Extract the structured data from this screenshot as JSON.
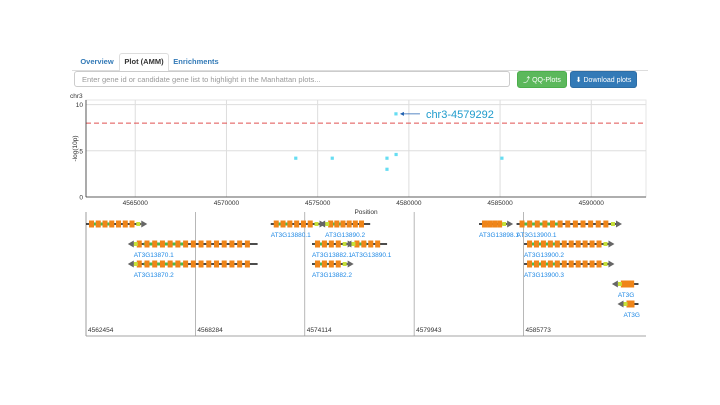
{
  "tabs": [
    {
      "label": "Overview",
      "active": false
    },
    {
      "label": "Plot (AMM)",
      "active": true
    },
    {
      "label": "Enrichments",
      "active": false
    }
  ],
  "search": {
    "placeholder": "Enter gene id or candidate gene list to highlight in the Manhattan plots..."
  },
  "buttons": {
    "qq": "QQ-Plots",
    "download": "Download plots"
  },
  "icons": {
    "qq": "line-chart-icon",
    "download": "download-circle-icon"
  },
  "colors": {
    "threshold": "#e05050",
    "points": "#66ddf2",
    "exon": "#ef8519",
    "utr": "#4cb84c",
    "gene_label": "#1e88e5",
    "annotation": "#1e9bcc"
  },
  "chart_data": {
    "type": "scatter",
    "title": "chr3",
    "xlabel": "Position",
    "ylabel": "-log(10p)",
    "xlim": [
      4562300,
      4593000
    ],
    "ylim": [
      0,
      10.5
    ],
    "xticks": [
      4565000,
      4570000,
      4575000,
      4580000,
      4585000,
      4590000
    ],
    "xtick_labels": [
      "4565000",
      "4570000",
      "4575000",
      "4580000",
      "4585000",
      "4590000"
    ],
    "yticks": [
      0,
      5,
      10
    ],
    "ytick_labels": [
      "0",
      "5",
      "10"
    ],
    "threshold": 8,
    "grid": true,
    "points": [
      {
        "x": 4573800,
        "y": 4.2
      },
      {
        "x": 4575800,
        "y": 4.2
      },
      {
        "x": 4578800,
        "y": 4.2
      },
      {
        "x": 4578800,
        "y": 3.0
      },
      {
        "x": 4579300,
        "y": 4.6
      },
      {
        "x": 4579292,
        "y": 9.0
      },
      {
        "x": 4585100,
        "y": 4.2
      }
    ],
    "annotation": {
      "label": "chr3-4579292",
      "x": 4579292,
      "y": 9.0
    }
  },
  "gene_track": {
    "axis_labels": [
      "4562454",
      "4568284",
      "4574114",
      "4579943",
      "4585773"
    ],
    "genes": [
      {
        "label": "",
        "start": 4562454,
        "end": 4565400,
        "strand": "+",
        "row": 0
      },
      {
        "label": "AT3G13870.1",
        "start": 4565000,
        "end": 4571600,
        "strand": "-",
        "row": 1
      },
      {
        "label": "AT3G13870.2",
        "start": 4565000,
        "end": 4571600,
        "strand": "-",
        "row": 2
      },
      {
        "label": "AT3G13880.1",
        "start": 4572300,
        "end": 4574900,
        "strand": "+",
        "row": 0
      },
      {
        "label": "AT3G13890.2",
        "start": 4575200,
        "end": 4577600,
        "strand": "-",
        "row": 0
      },
      {
        "label": "AT3G13882.1",
        "start": 4574500,
        "end": 4576400,
        "strand": "+",
        "row": 1
      },
      {
        "label": "AT3G13890.1",
        "start": 4576600,
        "end": 4578500,
        "strand": "-",
        "row": 1
      },
      {
        "label": "AT3G13882.2",
        "start": 4574500,
        "end": 4576400,
        "strand": "+",
        "row": 2
      },
      {
        "label": "AT3G13898.1",
        "start": 4583400,
        "end": 4584900,
        "strand": "+",
        "row": 0
      },
      {
        "label": "AT3G13900.1",
        "start": 4585400,
        "end": 4590700,
        "strand": "+",
        "row": 0
      },
      {
        "label": "AT3G13900.2",
        "start": 4585800,
        "end": 4590300,
        "strand": "+",
        "row": 1
      },
      {
        "label": "AT3G13900.3",
        "start": 4585800,
        "end": 4590300,
        "strand": "+",
        "row": 2
      },
      {
        "label": "AT3G",
        "start": 4590800,
        "end": 4591900,
        "strand": "-",
        "row": 3
      },
      {
        "label": "AT3G",
        "start": 4591100,
        "end": 4591900,
        "strand": "-",
        "row": 4
      }
    ]
  }
}
